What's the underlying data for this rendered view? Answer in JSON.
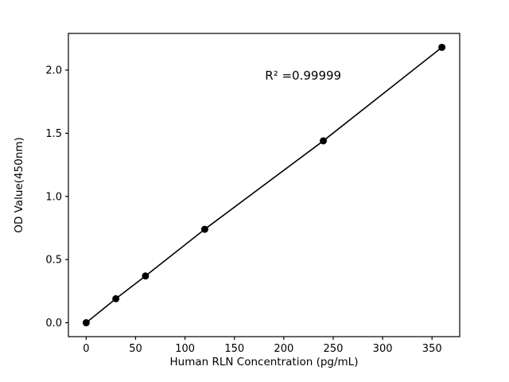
{
  "chart_data": {
    "type": "line",
    "title": "",
    "xlabel": "Human RLN Concentration (pg/mL)",
    "ylabel": "OD Value(450nm)",
    "annotation": "R² =0.99999",
    "annotation_axfrac": [
      0.6,
      0.152
    ],
    "x": [
      0,
      30,
      60,
      120,
      240,
      360
    ],
    "y": [
      0.0,
      0.19,
      0.37,
      0.74,
      1.44,
      2.18
    ],
    "xticks": [
      0,
      50,
      100,
      150,
      200,
      250,
      300,
      350
    ],
    "xtick_labels": [
      "0",
      "50",
      "100",
      "150",
      "200",
      "250",
      "300",
      "350"
    ],
    "yticks": [
      0.0,
      0.5,
      1.0,
      1.5,
      2.0
    ],
    "ytick_labels": [
      "0.0",
      "0.5",
      "1.0",
      "1.5",
      "2.0"
    ],
    "xlim": [
      -18,
      378
    ],
    "ylim": [
      -0.11,
      2.29
    ],
    "grid": false,
    "legend": "none",
    "line_color": "#000000",
    "marker_color": "#000000",
    "axis_color": "#000000",
    "background": "#ffffff"
  }
}
